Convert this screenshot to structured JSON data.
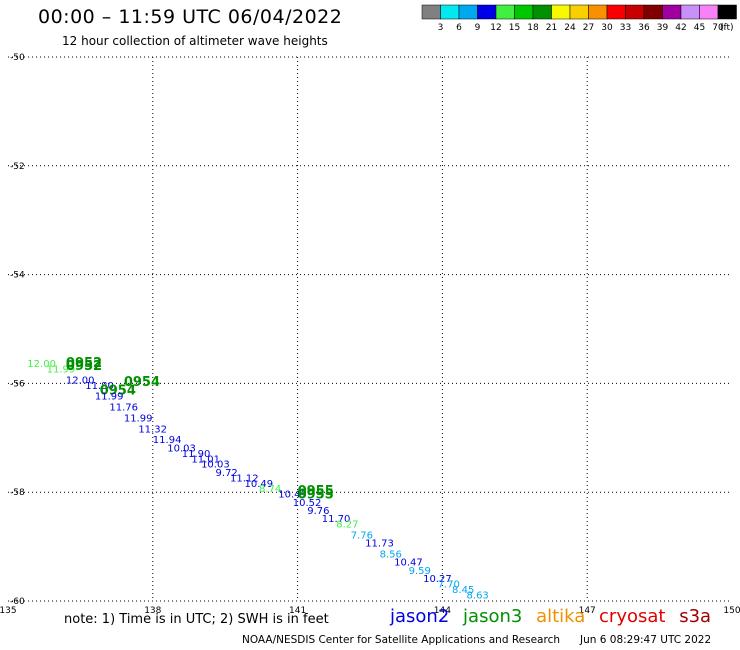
{
  "header": {
    "title": "00:00 – 11:59 UTC 06/04/2022",
    "subtitle": "12 hour collection of altimeter wave heights"
  },
  "colorbar": {
    "unit": "(ft)",
    "bins": [
      {
        "label": "3",
        "color": "#808080"
      },
      {
        "label": "6",
        "color": "#00e8f0"
      },
      {
        "label": "9",
        "color": "#00a8f0"
      },
      {
        "label": "12",
        "color": "#0000e8"
      },
      {
        "label": "15",
        "color": "#40f040"
      },
      {
        "label": "18",
        "color": "#00c800"
      },
      {
        "label": "21",
        "color": "#009000"
      },
      {
        "label": "24",
        "color": "#f8f800"
      },
      {
        "label": "27",
        "color": "#f8d000"
      },
      {
        "label": "30",
        "color": "#f89000"
      },
      {
        "label": "33",
        "color": "#f80000"
      },
      {
        "label": "36",
        "color": "#c80000"
      },
      {
        "label": "39",
        "color": "#800000"
      },
      {
        "label": "42",
        "color": "#a000a0"
      },
      {
        "label": "45",
        "color": "#c890f8"
      },
      {
        "label": "70",
        "color": "#f880f8"
      },
      {
        "label": "",
        "color": "#000000"
      }
    ]
  },
  "footer": {
    "note": "note: 1) Time is in UTC; 2) SWH is in feet",
    "credit": "NOAA/NESDIS Center for Satellite Applications and Research",
    "timestamp": "Jun  6 08:29:47 UTC 2022"
  },
  "satellites": [
    {
      "name": "jason2",
      "color": "#0000e0"
    },
    {
      "name": "jason3",
      "color": "#009000"
    },
    {
      "name": "altika",
      "color": "#f09000"
    },
    {
      "name": "cryosat",
      "color": "#e00000"
    },
    {
      "name": "s3a",
      "color": "#a00000"
    }
  ],
  "chart_data": {
    "type": "scatter",
    "xlim": [
      135,
      150
    ],
    "ylim": [
      -60,
      -50
    ],
    "x_ticks": [
      "135",
      "138",
      "141",
      "144",
      "147",
      "150"
    ],
    "y_ticks": [
      "-50",
      "-52",
      "-54",
      "-56",
      "-58",
      "-60"
    ],
    "grid": true,
    "observation_labels": [
      {
        "lon": 135.4,
        "lat": -55.7,
        "text": "12.00",
        "color": "#40f040"
      },
      {
        "lon": 135.8,
        "lat": -55.8,
        "text": "11.99",
        "color": "#40f040"
      },
      {
        "lon": 136.2,
        "lat": -55.7,
        "text": "0952",
        "color": "#009000",
        "time": true
      },
      {
        "lon": 136.2,
        "lat": -55.75,
        "text": "0952",
        "color": "#009000",
        "time": true
      },
      {
        "lon": 136.2,
        "lat": -56.0,
        "text": "12.00",
        "color": "#0000e0"
      },
      {
        "lon": 136.6,
        "lat": -56.1,
        "text": "11.80",
        "color": "#0000e0"
      },
      {
        "lon": 136.9,
        "lat": -56.2,
        "text": "0954",
        "color": "#009000",
        "time": true
      },
      {
        "lon": 137.4,
        "lat": -56.05,
        "text": "0954",
        "color": "#009000",
        "time": true
      },
      {
        "lon": 136.8,
        "lat": -56.3,
        "text": "11.99",
        "color": "#0000e0"
      },
      {
        "lon": 137.1,
        "lat": -56.5,
        "text": "11.76",
        "color": "#0000e0"
      },
      {
        "lon": 137.4,
        "lat": -56.7,
        "text": "11.99",
        "color": "#0000e0"
      },
      {
        "lon": 137.7,
        "lat": -56.9,
        "text": "11.32",
        "color": "#0000e0"
      },
      {
        "lon": 138.0,
        "lat": -57.1,
        "text": "11.94",
        "color": "#0000e0"
      },
      {
        "lon": 138.3,
        "lat": -57.25,
        "text": "10.03",
        "color": "#0000e0"
      },
      {
        "lon": 138.6,
        "lat": -57.35,
        "text": "11.90",
        "color": "#0000e0"
      },
      {
        "lon": 138.8,
        "lat": -57.45,
        "text": "11.01",
        "color": "#0000e0"
      },
      {
        "lon": 139.0,
        "lat": -57.55,
        "text": "10.03",
        "color": "#0000e0"
      },
      {
        "lon": 139.3,
        "lat": -57.7,
        "text": "9.72",
        "color": "#0000e0"
      },
      {
        "lon": 139.6,
        "lat": -57.8,
        "text": "11.12",
        "color": "#0000e0"
      },
      {
        "lon": 139.9,
        "lat": -57.9,
        "text": "10.49",
        "color": "#0000e0"
      },
      {
        "lon": 140.2,
        "lat": -58.0,
        "text": "8.74",
        "color": "#40f040"
      },
      {
        "lon": 140.6,
        "lat": -58.1,
        "text": "10.45",
        "color": "#0000e0"
      },
      {
        "lon": 141.0,
        "lat": -58.05,
        "text": "0955",
        "color": "#009000",
        "time": true
      },
      {
        "lon": 141.0,
        "lat": -58.12,
        "text": "0955",
        "color": "#009000",
        "time": true
      },
      {
        "lon": 140.9,
        "lat": -58.25,
        "text": "10.52",
        "color": "#0000e0"
      },
      {
        "lon": 141.2,
        "lat": -58.4,
        "text": "9.76",
        "color": "#0000e0"
      },
      {
        "lon": 141.5,
        "lat": -58.55,
        "text": "11.70",
        "color": "#0000e0"
      },
      {
        "lon": 141.8,
        "lat": -58.65,
        "text": "8.27",
        "color": "#40f040"
      },
      {
        "lon": 142.1,
        "lat": -58.85,
        "text": "7.76",
        "color": "#00a8f0"
      },
      {
        "lon": 142.4,
        "lat": -59.0,
        "text": "11.73",
        "color": "#0000e0"
      },
      {
        "lon": 142.7,
        "lat": -59.2,
        "text": "8.56",
        "color": "#00a8f0"
      },
      {
        "lon": 143.0,
        "lat": -59.35,
        "text": "10.47",
        "color": "#0000e0"
      },
      {
        "lon": 143.3,
        "lat": -59.5,
        "text": "9.59",
        "color": "#00a8f0"
      },
      {
        "lon": 143.6,
        "lat": -59.65,
        "text": "10.27",
        "color": "#0000e0"
      },
      {
        "lon": 143.9,
        "lat": -59.75,
        "text": "7.70",
        "color": "#00a8f0"
      },
      {
        "lon": 144.2,
        "lat": -59.85,
        "text": "8.45",
        "color": "#00a8f0"
      },
      {
        "lon": 144.5,
        "lat": -59.95,
        "text": "8.63",
        "color": "#00a8f0"
      }
    ]
  }
}
